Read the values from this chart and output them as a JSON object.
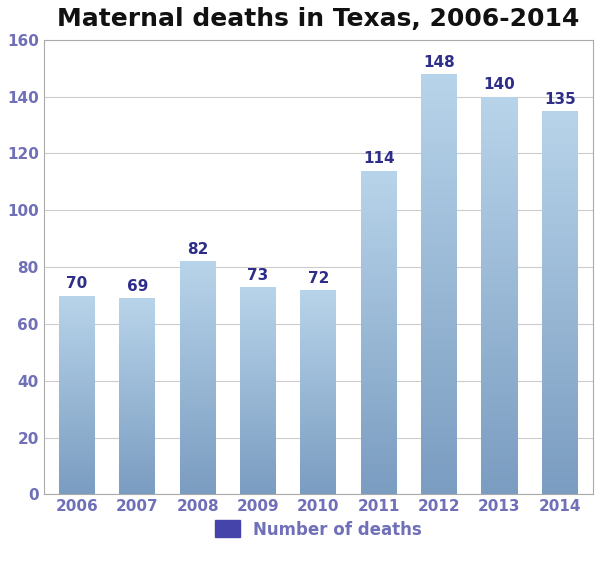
{
  "title": "Maternal deaths in Texas, 2006-2014",
  "years": [
    "2006",
    "2007",
    "2008",
    "2009",
    "2010",
    "2011",
    "2012",
    "2013",
    "2014"
  ],
  "values": [
    70,
    69,
    82,
    73,
    72,
    114,
    148,
    140,
    135
  ],
  "bar_color_top": "#b8d4ea",
  "bar_color_bottom": "#7a9cc0",
  "bar_edge_color": "none",
  "label_color": "#2e2e8a",
  "title_fontsize": 18,
  "title_color": "#111111",
  "tick_label_color": "#7070b8",
  "ylim": [
    0,
    160
  ],
  "yticks": [
    0,
    20,
    40,
    60,
    80,
    100,
    120,
    140,
    160
  ],
  "legend_label": "Number of deaths",
  "legend_color": "#4444aa",
  "background_color": "#ffffff",
  "plot_background": "#ffffff",
  "grid_color": "#cccccc",
  "value_fontsize": 11,
  "tick_fontsize": 11,
  "bar_width": 0.6
}
